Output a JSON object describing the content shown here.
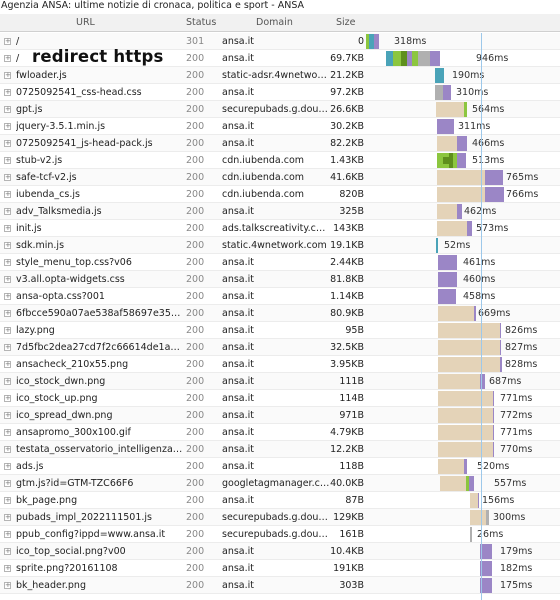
{
  "window": {
    "title": "Agenzia ANSA: ultime notizie di cronaca, politica e sport - ANSA"
  },
  "columns": {
    "url": "URL",
    "status": "Status",
    "domain": "Domain",
    "size": "Size"
  },
  "annotation": "redirect https",
  "colors": {
    "blocking": "#8cc63f",
    "dns": "#4aa3b8",
    "connect": "#9b86c6",
    "ssl": "#5e8f1e",
    "send": "#b0b0b0",
    "wait": "#e4d3b8",
    "receive": "#9b86c6",
    "marker": "#9dc8ea"
  },
  "requests": [
    {
      "url": "/",
      "status": "301",
      "domain": "ansa.it",
      "size": "0",
      "time": "318ms"
    },
    {
      "url": "/",
      "status": "200",
      "domain": "ansa.it",
      "size": "69.7KB",
      "time": "946ms"
    },
    {
      "url": "fwloader.js",
      "status": "200",
      "domain": "static-adsr.4wnetwork.com",
      "size": "21.2KB",
      "time": "190ms"
    },
    {
      "url": "0725092541_css-head.css",
      "status": "200",
      "domain": "ansa.it",
      "size": "97.2KB",
      "time": "310ms"
    },
    {
      "url": "gpt.js",
      "status": "200",
      "domain": "securepubads.g.doubleclick.net",
      "size": "26.6KB",
      "time": "564ms"
    },
    {
      "url": "jquery-3.5.1.min.js",
      "status": "200",
      "domain": "ansa.it",
      "size": "30.2KB",
      "time": "311ms"
    },
    {
      "url": "0725092541_js-head-pack.js",
      "status": "200",
      "domain": "ansa.it",
      "size": "82.2KB",
      "time": "466ms"
    },
    {
      "url": "stub-v2.js",
      "status": "200",
      "domain": "cdn.iubenda.com",
      "size": "1.43KB",
      "time": "513ms"
    },
    {
      "url": "safe-tcf-v2.js",
      "status": "200",
      "domain": "cdn.iubenda.com",
      "size": "41.6KB",
      "time": "765ms"
    },
    {
      "url": "iubenda_cs.js",
      "status": "200",
      "domain": "cdn.iubenda.com",
      "size": "820B",
      "time": "766ms"
    },
    {
      "url": "adv_Talksmedia.js",
      "status": "200",
      "domain": "ansa.it",
      "size": "325B",
      "time": "462ms"
    },
    {
      "url": "init.js",
      "status": "200",
      "domain": "ads.talkscreativity.com",
      "size": "143KB",
      "time": "573ms"
    },
    {
      "url": "sdk.min.js",
      "status": "200",
      "domain": "static.4wnetwork.com",
      "size": "19.1KB",
      "time": "52ms"
    },
    {
      "url": "style_menu_top.css?v06",
      "status": "200",
      "domain": "ansa.it",
      "size": "2.44KB",
      "time": "461ms"
    },
    {
      "url": "v3.all.opta-widgets.css",
      "status": "200",
      "domain": "ansa.it",
      "size": "81.8KB",
      "time": "460ms"
    },
    {
      "url": "ansa-opta.css?001",
      "status": "200",
      "domain": "ansa.it",
      "size": "1.14KB",
      "time": "458ms"
    },
    {
      "url": "6fbcce590a07ae538af58697e35b1...",
      "status": "200",
      "domain": "ansa.it",
      "size": "80.9KB",
      "time": "669ms"
    },
    {
      "url": "lazy.png",
      "status": "200",
      "domain": "ansa.it",
      "size": "95B",
      "time": "826ms"
    },
    {
      "url": "7d5fbc2dea27cd7f2c66614de1ad9...",
      "status": "200",
      "domain": "ansa.it",
      "size": "32.5KB",
      "time": "827ms"
    },
    {
      "url": "ansacheck_210x55.png",
      "status": "200",
      "domain": "ansa.it",
      "size": "3.95KB",
      "time": "828ms"
    },
    {
      "url": "ico_stock_dwn.png",
      "status": "200",
      "domain": "ansa.it",
      "size": "111B",
      "time": "687ms"
    },
    {
      "url": "ico_stock_up.png",
      "status": "200",
      "domain": "ansa.it",
      "size": "114B",
      "time": "771ms"
    },
    {
      "url": "ico_spread_dwn.png",
      "status": "200",
      "domain": "ansa.it",
      "size": "971B",
      "time": "772ms"
    },
    {
      "url": "ansapromo_300x100.gif",
      "status": "200",
      "domain": "ansa.it",
      "size": "4.79KB",
      "time": "771ms"
    },
    {
      "url": "testata_osservatorio_intelligenza_a...",
      "status": "200",
      "domain": "ansa.it",
      "size": "12.2KB",
      "time": "770ms"
    },
    {
      "url": "ads.js",
      "status": "200",
      "domain": "ansa.it",
      "size": "118B",
      "time": "520ms"
    },
    {
      "url": "gtm.js?id=GTM-TZC66F6",
      "status": "200",
      "domain": "googletagmanager.com",
      "size": "40.0KB",
      "time": "557ms"
    },
    {
      "url": "bk_page.png",
      "status": "200",
      "domain": "ansa.it",
      "size": "87B",
      "time": "156ms"
    },
    {
      "url": "pubads_impl_2022111501.js",
      "status": "200",
      "domain": "securepubads.g.doubleclick.net",
      "size": "129KB",
      "time": "300ms"
    },
    {
      "url": "ppub_config?ippd=www.ansa.it",
      "status": "200",
      "domain": "securepubads.g.doubleclick.net",
      "size": "161B",
      "time": "26ms"
    },
    {
      "url": "ico_top_social.png?v00",
      "status": "200",
      "domain": "ansa.it",
      "size": "10.4KB",
      "time": "179ms"
    },
    {
      "url": "sprite.png?20161108",
      "status": "200",
      "domain": "ansa.it",
      "size": "191KB",
      "time": "182ms"
    },
    {
      "url": "bk_header.png",
      "status": "200",
      "domain": "ansa.it",
      "size": "303B",
      "time": "175ms"
    }
  ]
}
